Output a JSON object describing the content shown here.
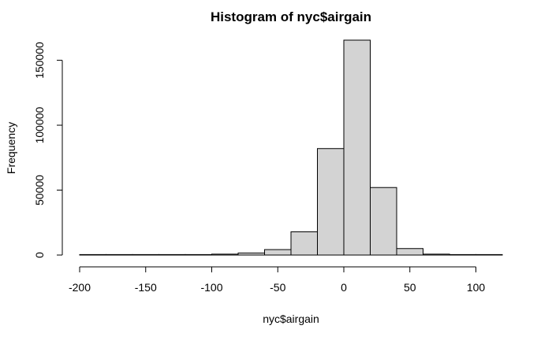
{
  "chart_data": {
    "type": "bar",
    "title": "Histogram of nyc$airgain",
    "xlabel": "nyc$airgain",
    "ylabel": "Frequency",
    "bin_width": 20,
    "bins": [
      {
        "start": -200,
        "end": -180,
        "count": 20
      },
      {
        "start": -180,
        "end": -160,
        "count": 20
      },
      {
        "start": -160,
        "end": -140,
        "count": 40
      },
      {
        "start": -140,
        "end": -120,
        "count": 80
      },
      {
        "start": -120,
        "end": -100,
        "count": 350
      },
      {
        "start": -100,
        "end": -80,
        "count": 700
      },
      {
        "start": -80,
        "end": -60,
        "count": 1600
      },
      {
        "start": -60,
        "end": -40,
        "count": 4200
      },
      {
        "start": -40,
        "end": -20,
        "count": 17900
      },
      {
        "start": -20,
        "end": 0,
        "count": 82000
      },
      {
        "start": 0,
        "end": 20,
        "count": 165500
      },
      {
        "start": 20,
        "end": 40,
        "count": 52000
      },
      {
        "start": 40,
        "end": 60,
        "count": 5000
      },
      {
        "start": 60,
        "end": 80,
        "count": 700
      },
      {
        "start": 80,
        "end": 100,
        "count": 120
      },
      {
        "start": 100,
        "end": 120,
        "count": 30
      }
    ],
    "xlim": [
      -200,
      120
    ],
    "ylim": [
      0,
      165500
    ],
    "x_ticks": [
      {
        "value": -200,
        "label": "-200"
      },
      {
        "value": -150,
        "label": "-150"
      },
      {
        "value": -100,
        "label": "-100"
      },
      {
        "value": -50,
        "label": "-50"
      },
      {
        "value": 0,
        "label": "0"
      },
      {
        "value": 50,
        "label": "50"
      },
      {
        "value": 100,
        "label": "100"
      }
    ],
    "y_ticks": [
      {
        "value": 0,
        "label": "0"
      },
      {
        "value": 50000,
        "label": "50000"
      },
      {
        "value": 100000,
        "label": "100000"
      },
      {
        "value": 150000,
        "label": "150000"
      }
    ],
    "bar_fill": "#d3d3d3",
    "bar_stroke": "#000000",
    "grid": false,
    "legend": "none"
  }
}
